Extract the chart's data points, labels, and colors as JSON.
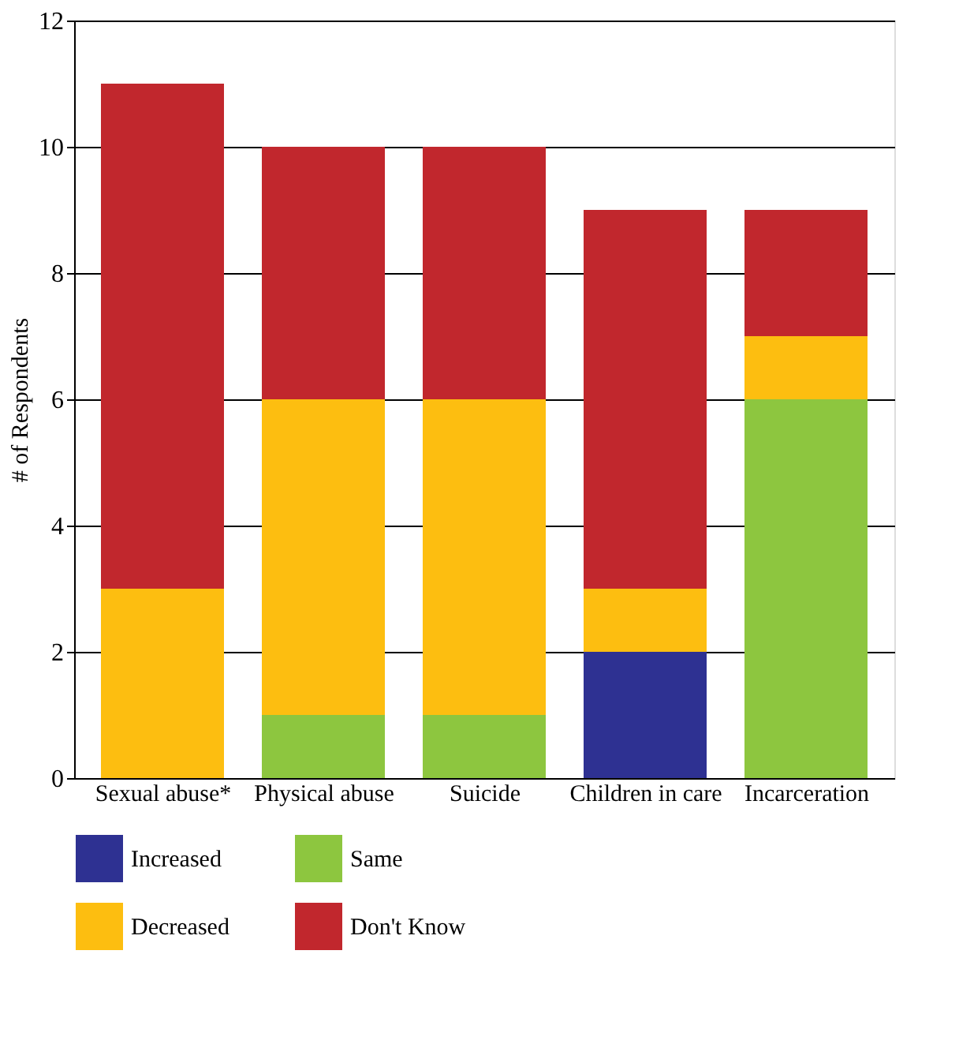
{
  "chart_data": {
    "type": "bar",
    "stacked": true,
    "ylabel": "# of Respondents",
    "categories": [
      "Sexual abuse*",
      "Physical abuse",
      "Suicide",
      "Children in care",
      "Incarceration"
    ],
    "series": [
      {
        "name": "Increased",
        "color": "#2e3192",
        "values": [
          0,
          0,
          0,
          2,
          0
        ]
      },
      {
        "name": "Same",
        "color": "#8dc63f",
        "values": [
          0,
          1,
          1,
          0,
          6
        ]
      },
      {
        "name": "Decreased",
        "color": "#fdbe10",
        "values": [
          3,
          5,
          5,
          1,
          1
        ]
      },
      {
        "name": "Don't Know",
        "color": "#c1272d",
        "values": [
          8,
          4,
          4,
          6,
          2
        ]
      }
    ],
    "ylim": [
      0,
      12
    ],
    "yticks": [
      0,
      2,
      4,
      6,
      8,
      10,
      12
    ],
    "grid": "y",
    "legend": "bottom"
  }
}
